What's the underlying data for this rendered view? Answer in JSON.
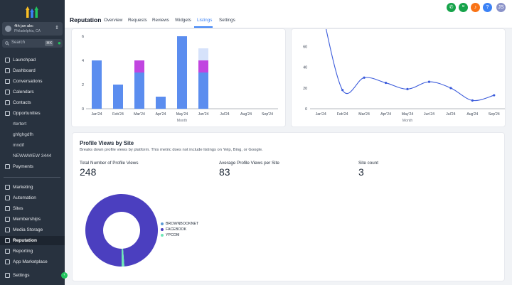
{
  "account": {
    "name": "4th jan abc",
    "location": "Philadelphia, CA"
  },
  "search": {
    "placeholder": "Search",
    "shortcut": "⌘K"
  },
  "nav": {
    "items": [
      {
        "label": "Launchpad",
        "icon": "rocket-icon"
      },
      {
        "label": "Dashboard",
        "icon": "dashboard-icon"
      },
      {
        "label": "Conversations",
        "icon": "chat-icon"
      },
      {
        "label": "Calendars",
        "icon": "calendar-icon"
      },
      {
        "label": "Contacts",
        "icon": "contacts-icon"
      },
      {
        "label": "Opportunities",
        "icon": "funnel-icon"
      },
      {
        "label": "rtertert",
        "icon": ""
      },
      {
        "label": "ghfghgdfh",
        "icon": ""
      },
      {
        "label": "mndif",
        "icon": ""
      },
      {
        "label": "NEWWWEW 3444",
        "icon": ""
      },
      {
        "label": "Payments",
        "icon": "payments-icon"
      },
      {
        "label": "Marketing",
        "icon": "send-icon"
      },
      {
        "label": "Automation",
        "icon": "automation-icon"
      },
      {
        "label": "Sites",
        "icon": "sites-icon"
      },
      {
        "label": "Memberships",
        "icon": "membership-icon"
      },
      {
        "label": "Media Storage",
        "icon": "media-icon"
      },
      {
        "label": "Reputation",
        "icon": "star-icon"
      },
      {
        "label": "Reporting",
        "icon": "reporting-icon"
      },
      {
        "label": "App Marketplace",
        "icon": "marketplace-icon"
      },
      {
        "label": "Settings",
        "icon": "gear-icon"
      }
    ]
  },
  "header": {
    "title": "Reputation",
    "tabs": [
      "Overview",
      "Requests",
      "Reviews",
      "Widgets",
      "Listings",
      "Settings"
    ],
    "active_tab": "Listings",
    "avatar_initials": "JS",
    "buttons": [
      {
        "icon": "phone-icon",
        "color": "#16a34a"
      },
      {
        "icon": "megaphone-icon",
        "color": "#16a34a"
      },
      {
        "icon": "bell-icon",
        "color": "#f97316"
      },
      {
        "icon": "help-icon",
        "color": "#3b82f6"
      }
    ]
  },
  "chart_data": [
    {
      "type": "bar",
      "stacked": true,
      "categories": [
        "Jan'24",
        "Feb'24",
        "Mar'24",
        "Apr'24",
        "May'24",
        "Jun'24",
        "Jul'24",
        "Aug'24",
        "Sep'24"
      ],
      "series": [
        {
          "values": [
            4,
            2,
            3,
            1,
            6,
            3,
            0,
            0,
            0
          ],
          "color": "#5b8def"
        },
        {
          "values": [
            0,
            0,
            1,
            0,
            0,
            1,
            0,
            0,
            0
          ],
          "color": "#c145e0"
        },
        {
          "values": [
            0,
            0,
            0,
            0,
            0,
            1,
            0,
            0,
            0
          ],
          "color": "#d6e2fb"
        }
      ],
      "yticks": [
        0,
        2,
        4,
        6
      ],
      "xlabel": "Month",
      "ylim": [
        0,
        6
      ]
    },
    {
      "type": "line",
      "categories": [
        "Jan'24",
        "Feb'24",
        "Mar'24",
        "Apr'24",
        "May'24",
        "Jun'24",
        "Jul'24",
        "Aug'24",
        "Sep'24"
      ],
      "values": [
        100,
        18,
        30,
        25,
        19,
        26,
        20,
        8,
        13
      ],
      "yticks": [
        0,
        20,
        40,
        60
      ],
      "xlabel": "Month",
      "ylim": [
        0,
        70
      ],
      "color": "#3b5bdb"
    }
  ],
  "profile_views": {
    "title": "Profile Views by Site",
    "description": "Breaks down profile views by platform. This metric does not include listings on Yelp, Bing, or Google.",
    "stats": [
      {
        "label": "Total Number of Profile Views",
        "value": "248"
      },
      {
        "label": "Average Profile Views per Site",
        "value": "83"
      },
      {
        "label": "Site count",
        "value": "3"
      }
    ],
    "donut": {
      "type": "pie",
      "slices": [
        {
          "label": "BROWNBOOKNET",
          "value": 0,
          "color": "#5b9bd5"
        },
        {
          "label": "FACEBOOK",
          "value": 245,
          "color": "#4b3fbf"
        },
        {
          "label": "YPCOM",
          "value": 3,
          "color": "#6ee7b7"
        }
      ]
    }
  }
}
